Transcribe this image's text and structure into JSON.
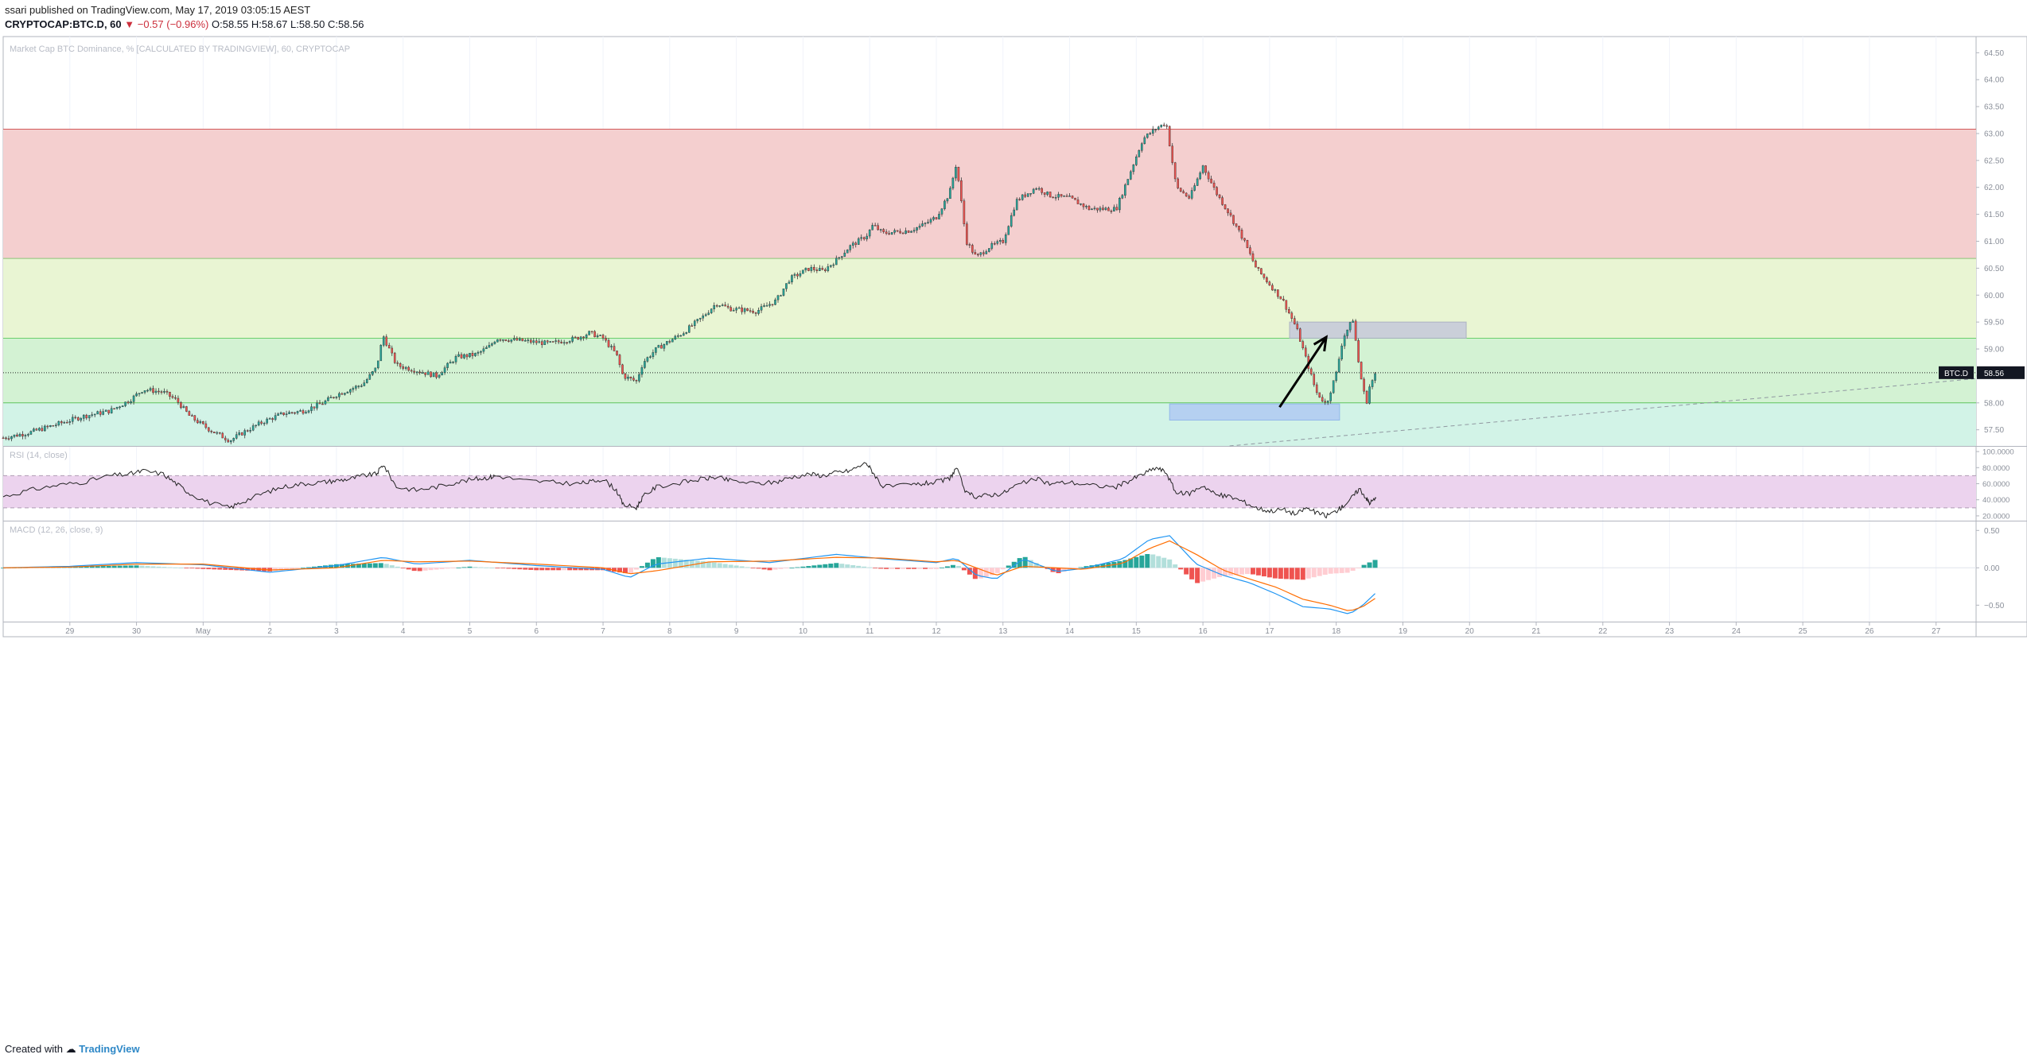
{
  "header": {
    "line1": "ssari published on TradingView.com, May 17, 2019 03:05:15 AEST",
    "symbol": "CRYPTOCAP:BTC.D, 60",
    "change_text": "▼ −0.57 (−0.96%)",
    "ohlc_text": "O:58.55 H:58.67 L:58.50 C:58.56"
  },
  "footer": {
    "created_with": "Created with",
    "brand": "TradingView"
  },
  "colors": {
    "up": "#26a69a",
    "down": "#ef5350",
    "zone_red": "#f4cfcf",
    "zone_green_light": "#e9f5d3",
    "zone_green": "#d3f2d3",
    "zone_teal": "#d2f3e7",
    "rsi_band": "#ecd3ee",
    "macd_line": "#2196f3",
    "signal_line": "#ff6d00"
  },
  "chart_data": [
    {
      "type": "candlestick",
      "title": "Market Cap BTC Dominance, % [CALCULATED BY TRADINGVIEW], 60, CRYPTOCAP",
      "symbol_tag": "BTC.D",
      "last_value_label": "58.56",
      "last_value": 58.56,
      "ylim": [
        57.2,
        64.8
      ],
      "yticks": [
        "57.50",
        "58.00",
        "58.50",
        "59.00",
        "59.50",
        "60.00",
        "60.50",
        "61.00",
        "61.50",
        "62.00",
        "62.50",
        "63.00",
        "63.50",
        "64.00",
        "64.50"
      ],
      "x_labels": [
        "29",
        "30",
        "May",
        "2",
        "3",
        "4",
        "5",
        "6",
        "7",
        "8",
        "9",
        "10",
        "11",
        "12",
        "13",
        "14",
        "15",
        "16",
        "17",
        "18",
        "19",
        "20",
        "21",
        "22",
        "23",
        "24",
        "25",
        "26",
        "27"
      ],
      "x_range_days": [
        -1.0,
        28.6
      ],
      "zones": [
        {
          "name": "resistance-zone-red",
          "from": 60.68,
          "to": 63.08
        },
        {
          "name": "zone-light-green",
          "from": 59.2,
          "to": 60.68
        },
        {
          "name": "zone-green",
          "from": 58.0,
          "to": 59.2
        },
        {
          "name": "zone-teal",
          "from": 57.2,
          "to": 58.0
        }
      ],
      "boxes": [
        {
          "name": "target-box-gray",
          "x0": 18.3,
          "x1": 20.95,
          "y0": 59.2,
          "y1": 59.5
        },
        {
          "name": "support-box-blue",
          "x0": 16.5,
          "x1": 19.05,
          "y0": 57.68,
          "y1": 57.98
        }
      ],
      "arrow": {
        "x0": 18.15,
        "y0": 57.92,
        "x1": 18.85,
        "y1": 59.22
      },
      "trendline_dashed": {
        "x0": 17.4,
        "y0": 57.2,
        "x1": 28.6,
        "y1": 58.45
      },
      "path_points": [
        [
          -1.0,
          57.35
        ],
        [
          -0.6,
          57.45
        ],
        [
          -0.2,
          57.6
        ],
        [
          0.2,
          57.75
        ],
        [
          0.6,
          57.85
        ],
        [
          0.9,
          58.05
        ],
        [
          1.1,
          58.25
        ],
        [
          1.4,
          58.2
        ],
        [
          1.6,
          58.05
        ],
        [
          1.8,
          57.75
        ],
        [
          2.1,
          57.5
        ],
        [
          2.4,
          57.3
        ],
        [
          2.6,
          57.45
        ],
        [
          2.9,
          57.65
        ],
        [
          3.2,
          57.8
        ],
        [
          3.5,
          57.85
        ],
        [
          3.8,
          58.0
        ],
        [
          4.0,
          58.15
        ],
        [
          4.2,
          58.25
        ],
        [
          4.4,
          58.35
        ],
        [
          4.6,
          58.65
        ],
        [
          4.7,
          59.25
        ],
        [
          4.9,
          58.7
        ],
        [
          5.2,
          58.6
        ],
        [
          5.5,
          58.5
        ],
        [
          5.8,
          58.85
        ],
        [
          6.1,
          58.9
        ],
        [
          6.3,
          59.05
        ],
        [
          6.4,
          59.2
        ],
        [
          6.8,
          59.15
        ],
        [
          7.2,
          59.1
        ],
        [
          7.6,
          59.2
        ],
        [
          7.8,
          59.3
        ],
        [
          8.0,
          59.2
        ],
        [
          8.2,
          58.9
        ],
        [
          8.3,
          58.5
        ],
        [
          8.5,
          58.4
        ],
        [
          8.6,
          58.75
        ],
        [
          8.8,
          59.0
        ],
        [
          9.2,
          59.3
        ],
        [
          9.5,
          59.6
        ],
        [
          9.7,
          59.85
        ],
        [
          9.9,
          59.75
        ],
        [
          10.3,
          59.7
        ],
        [
          10.6,
          59.9
        ],
        [
          10.8,
          60.3
        ],
        [
          11.1,
          60.5
        ],
        [
          11.3,
          60.45
        ],
        [
          11.5,
          60.65
        ],
        [
          11.7,
          60.9
        ],
        [
          11.95,
          61.1
        ],
        [
          12.05,
          61.3
        ],
        [
          12.2,
          61.15
        ],
        [
          12.6,
          61.2
        ],
        [
          12.8,
          61.3
        ],
        [
          13.0,
          61.45
        ],
        [
          13.2,
          61.9
        ],
        [
          13.3,
          62.45
        ],
        [
          13.45,
          61.0
        ],
        [
          13.6,
          60.7
        ],
        [
          13.8,
          60.9
        ],
        [
          14.0,
          61.0
        ],
        [
          14.2,
          61.75
        ],
        [
          14.5,
          62.0
        ],
        [
          14.7,
          61.85
        ],
        [
          15.0,
          61.8
        ],
        [
          15.3,
          61.6
        ],
        [
          15.7,
          61.6
        ],
        [
          15.9,
          62.25
        ],
        [
          16.1,
          62.9
        ],
        [
          16.3,
          63.1
        ],
        [
          16.45,
          63.2
        ],
        [
          16.6,
          62.0
        ],
        [
          16.8,
          61.8
        ],
        [
          17.0,
          62.4
        ],
        [
          17.2,
          61.9
        ],
        [
          17.4,
          61.5
        ],
        [
          17.6,
          61.05
        ],
        [
          17.8,
          60.5
        ],
        [
          18.0,
          60.2
        ],
        [
          18.2,
          59.9
        ],
        [
          18.4,
          59.4
        ],
        [
          18.55,
          58.8
        ],
        [
          18.7,
          58.2
        ],
        [
          18.85,
          57.97
        ],
        [
          19.0,
          58.55
        ],
        [
          19.1,
          59.2
        ],
        [
          19.25,
          59.55
        ],
        [
          19.35,
          58.6
        ],
        [
          19.45,
          57.98
        ],
        [
          19.5,
          58.3
        ],
        [
          19.6,
          58.56
        ]
      ]
    },
    {
      "type": "line",
      "title": "RSI (14, close)",
      "ylim": [
        14,
        106
      ],
      "yticks": [
        "20.0000",
        "40.0000",
        "60.0000",
        "80.0000",
        "100.0000"
      ],
      "band": {
        "from": 30,
        "to": 70
      },
      "series": [
        {
          "x": [
            -1.0,
            -0.6,
            -0.2,
            0.2,
            0.6,
            0.9,
            1.1,
            1.4,
            1.6,
            1.8,
            2.1,
            2.4,
            2.6,
            2.9,
            3.2,
            3.5,
            3.8,
            4.0,
            4.2,
            4.4,
            4.6,
            4.7,
            4.9,
            5.2,
            5.5,
            5.8,
            6.1,
            6.3,
            6.4,
            6.8,
            7.2,
            7.6,
            7.8,
            8.0,
            8.2,
            8.3,
            8.5,
            8.6,
            8.8,
            9.2,
            9.5,
            9.7,
            9.9,
            10.3,
            10.6,
            10.8,
            11.1,
            11.3,
            11.5,
            11.7,
            11.95,
            12.05,
            12.2,
            12.6,
            12.8,
            13.0,
            13.2,
            13.3,
            13.45,
            13.6,
            13.8,
            14.0,
            14.2,
            14.5,
            14.7,
            15.0,
            15.3,
            15.7,
            15.9,
            16.1,
            16.3,
            16.45,
            16.6,
            16.8,
            17.0,
            17.2,
            17.4,
            17.6,
            17.8,
            18.0,
            18.2,
            18.4,
            18.55,
            18.7,
            18.85,
            19.0,
            19.1,
            19.25,
            19.35,
            19.45,
            19.5,
            19.6
          ],
          "values": [
            44,
            52,
            58,
            62,
            70,
            72,
            76,
            72,
            60,
            48,
            36,
            30,
            38,
            48,
            56,
            60,
            62,
            64,
            66,
            70,
            72,
            84,
            56,
            52,
            56,
            62,
            66,
            68,
            70,
            64,
            62,
            60,
            62,
            66,
            52,
            34,
            30,
            44,
            56,
            62,
            66,
            68,
            64,
            60,
            62,
            68,
            72,
            70,
            74,
            76,
            86,
            74,
            56,
            58,
            60,
            62,
            66,
            80,
            48,
            44,
            46,
            48,
            58,
            66,
            60,
            62,
            58,
            56,
            64,
            72,
            80,
            74,
            48,
            48,
            58,
            46,
            44,
            38,
            30,
            26,
            28,
            22,
            30,
            24,
            20,
            26,
            32,
            44,
            54,
            42,
            36,
            42
          ]
        }
      ]
    },
    {
      "type": "line",
      "title": "MACD (12, 26, close, 9)",
      "ylim": [
        -0.72,
        0.62
      ],
      "yticks": [
        "0.50",
        "0.00",
        "−0.50"
      ],
      "series": [
        {
          "name": "macd",
          "x": [
            -1.0,
            0.0,
            1.0,
            2.0,
            3.0,
            4.0,
            4.7,
            5.2,
            6.0,
            7.0,
            8.0,
            8.4,
            8.8,
            9.6,
            10.5,
            11.5,
            12.2,
            13.0,
            13.3,
            13.6,
            13.9,
            14.3,
            14.8,
            15.2,
            15.8,
            16.2,
            16.5,
            16.9,
            17.3,
            17.7,
            18.1,
            18.5,
            18.9,
            19.2,
            19.4,
            19.6
          ],
          "values": [
            0.0,
            0.02,
            0.07,
            0.04,
            -0.06,
            0.03,
            0.14,
            0.05,
            0.1,
            0.03,
            -0.02,
            -0.13,
            0.05,
            0.13,
            0.07,
            0.18,
            0.12,
            0.07,
            0.13,
            -0.1,
            -0.15,
            0.12,
            -0.05,
            -0.01,
            0.12,
            0.38,
            0.43,
            0.05,
            -0.1,
            -0.2,
            -0.35,
            -0.52,
            -0.55,
            -0.62,
            -0.5,
            -0.33
          ]
        },
        {
          "name": "signal",
          "x": [
            -1.0,
            0.0,
            1.0,
            2.0,
            3.0,
            4.0,
            4.7,
            5.2,
            6.0,
            7.0,
            8.0,
            8.4,
            8.8,
            9.6,
            10.5,
            11.5,
            12.2,
            13.0,
            13.3,
            13.6,
            13.9,
            14.3,
            14.8,
            15.2,
            15.8,
            16.2,
            16.5,
            16.9,
            17.3,
            17.7,
            18.1,
            18.5,
            18.9,
            19.2,
            19.4,
            19.6
          ],
          "values": [
            0.0,
            0.01,
            0.05,
            0.05,
            -0.03,
            0.0,
            0.1,
            0.08,
            0.09,
            0.05,
            0.0,
            -0.08,
            -0.04,
            0.08,
            0.09,
            0.14,
            0.13,
            0.08,
            0.1,
            0.0,
            -0.1,
            0.02,
            0.0,
            -0.02,
            0.06,
            0.26,
            0.36,
            0.18,
            -0.03,
            -0.15,
            -0.26,
            -0.42,
            -0.5,
            -0.58,
            -0.52,
            -0.4
          ]
        }
      ]
    }
  ]
}
